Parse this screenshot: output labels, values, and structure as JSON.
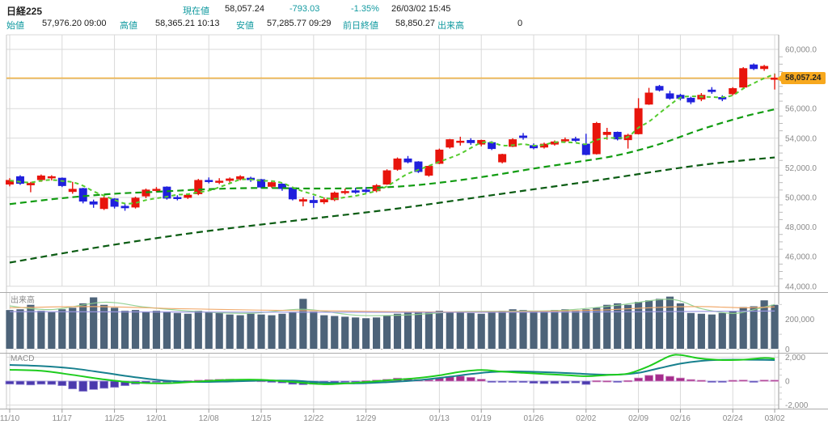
{
  "header": {
    "title": "日経225",
    "current": {
      "label": "現在値",
      "value": "58,057.24",
      "change": "-793.03",
      "change_pct": "-1.35%",
      "datetime": "26/03/02 15:45"
    },
    "open": {
      "label": "始値",
      "value": "57,976.20 09:00"
    },
    "high": {
      "label": "高値",
      "value": "58,365.21 10:13"
    },
    "low": {
      "label": "安値",
      "value": "57,285.77 09:29"
    },
    "prev_close": {
      "label": "前日終値",
      "value": "58,850.27"
    },
    "volume": {
      "label": "出来高",
      "value": "0"
    }
  },
  "panes": {
    "volume_label": "出来高",
    "macd_label": "MACD"
  },
  "chart_data": {
    "type": "candlestick",
    "title": "日経225 daily chart with volume and MACD",
    "current_price": 58057.24,
    "current_price_label": "58,057.24",
    "price_axis": {
      "min": 44000,
      "max": 60000,
      "major_step": 2000,
      "minor_step": 500,
      "label_hidden_at": 58000
    },
    "x_ticks": [
      [
        0,
        "11/10"
      ],
      [
        5,
        "11/17"
      ],
      [
        10,
        "11/25"
      ],
      [
        14,
        "12/01"
      ],
      [
        19,
        "12/08"
      ],
      [
        24,
        "12/15"
      ],
      [
        29,
        "12/22"
      ],
      [
        34,
        "12/29"
      ],
      [
        41,
        "01/13"
      ],
      [
        45,
        "01/19"
      ],
      [
        50,
        "01/26"
      ],
      [
        55,
        "02/02"
      ],
      [
        60,
        "02/09"
      ],
      [
        64,
        "02/16"
      ],
      [
        69,
        "02/24"
      ],
      [
        73,
        "03/02"
      ]
    ],
    "candles_columns": [
      "date",
      "open",
      "high",
      "low",
      "close",
      "volume",
      "macd_hist"
    ],
    "candles": [
      [
        "11/10",
        50900,
        51300,
        50750,
        51150,
        265000,
        -250
      ],
      [
        "11/11",
        51400,
        51500,
        50850,
        50950,
        270000,
        -280
      ],
      [
        "11/12",
        50850,
        51050,
        50350,
        50950,
        300000,
        -320
      ],
      [
        "11/13",
        51200,
        51550,
        51050,
        51450,
        260000,
        -260
      ],
      [
        "11/14",
        51350,
        51500,
        51150,
        51400,
        250000,
        -280
      ],
      [
        "11/17",
        51300,
        51350,
        50700,
        50800,
        270000,
        -380
      ],
      [
        "11/18",
        50400,
        51050,
        50250,
        50550,
        280000,
        -650
      ],
      [
        "11/19",
        50600,
        50650,
        49600,
        49750,
        310000,
        -850
      ],
      [
        "11/20",
        49700,
        49850,
        49300,
        49550,
        350000,
        -700
      ],
      [
        "11/21",
        49250,
        50050,
        49150,
        49950,
        300000,
        -600
      ],
      [
        "11/25",
        49900,
        49950,
        49250,
        49400,
        280000,
        -520
      ],
      [
        "11/26",
        49400,
        49550,
        49100,
        49300,
        260000,
        -380
      ],
      [
        "11/27",
        49350,
        50050,
        49250,
        49950,
        265000,
        -250
      ],
      [
        "11/28",
        50100,
        50600,
        49950,
        50500,
        255000,
        -150
      ],
      [
        "12/01",
        50500,
        50700,
        50350,
        50550,
        260000,
        -80
      ],
      [
        "12/02",
        50700,
        50750,
        49850,
        49950,
        255000,
        -60
      ],
      [
        "12/03",
        50000,
        50150,
        49800,
        49950,
        245000,
        -50
      ],
      [
        "12/04",
        50000,
        50250,
        49900,
        50150,
        240000,
        40
      ],
      [
        "12/05",
        50250,
        51250,
        50150,
        51150,
        260000,
        80
      ],
      [
        "12/08",
        51150,
        51350,
        50950,
        51100,
        250000,
        120
      ],
      [
        "12/09",
        51050,
        51300,
        50900,
        51100,
        245000,
        150
      ],
      [
        "12/10",
        51150,
        51350,
        51000,
        51250,
        235000,
        160
      ],
      [
        "12/11",
        51250,
        51500,
        51150,
        51400,
        230000,
        120
      ],
      [
        "12/12",
        51300,
        51400,
        51050,
        51200,
        240000,
        80
      ],
      [
        "12/15",
        51200,
        51250,
        50600,
        50700,
        235000,
        50
      ],
      [
        "12/16",
        50750,
        51100,
        50650,
        51000,
        230000,
        -80
      ],
      [
        "12/17",
        50900,
        50950,
        50450,
        50600,
        240000,
        -150
      ],
      [
        "12/18",
        50650,
        50700,
        49800,
        49900,
        250000,
        -260
      ],
      [
        "12/19",
        49750,
        50000,
        49400,
        49850,
        340000,
        -300
      ],
      [
        "12/22",
        49800,
        50100,
        49300,
        49650,
        255000,
        -260
      ],
      [
        "12/23",
        49700,
        50000,
        49550,
        49850,
        230000,
        -200
      ],
      [
        "12/24",
        49850,
        50400,
        49750,
        50300,
        225000,
        -130
      ],
      [
        "12/25",
        50350,
        50600,
        50200,
        50400,
        220000,
        -70
      ],
      [
        "12/26",
        50450,
        50650,
        50250,
        50350,
        215000,
        -30
      ],
      [
        "12/29",
        50500,
        50700,
        50300,
        50400,
        210000,
        40
      ],
      [
        "12/30",
        50450,
        50900,
        50350,
        50800,
        215000,
        90
      ],
      [
        "01/05",
        50900,
        51900,
        50850,
        51800,
        225000,
        150
      ],
      [
        "01/06",
        51900,
        52700,
        51800,
        52600,
        240000,
        250
      ],
      [
        "01/07",
        52600,
        52800,
        52300,
        52400,
        250000,
        220
      ],
      [
        "01/08",
        52400,
        52450,
        51650,
        51750,
        255000,
        130
      ],
      [
        "01/09",
        51500,
        52150,
        51400,
        52100,
        250000,
        110
      ],
      [
        "01/13",
        52300,
        53300,
        52250,
        53200,
        260000,
        260
      ],
      [
        "01/14",
        53400,
        53950,
        53300,
        53900,
        255000,
        360
      ],
      [
        "01/15",
        53750,
        54100,
        53500,
        53800,
        250000,
        420
      ],
      [
        "01/16",
        53850,
        54000,
        53550,
        53700,
        245000,
        310
      ],
      [
        "01/19",
        53600,
        53900,
        53450,
        53850,
        240000,
        160
      ],
      [
        "01/20",
        53700,
        53800,
        53200,
        53300,
        250000,
        -90
      ],
      [
        "01/21",
        52400,
        52950,
        52300,
        52900,
        260000,
        -100
      ],
      [
        "01/22",
        53450,
        54000,
        53400,
        53900,
        270000,
        -90
      ],
      [
        "01/23",
        54150,
        54350,
        53900,
        54050,
        265000,
        -110
      ],
      [
        "01/26",
        53500,
        53650,
        53250,
        53350,
        260000,
        -180
      ],
      [
        "01/27",
        53400,
        53700,
        53300,
        53600,
        255000,
        -210
      ],
      [
        "01/28",
        53600,
        53850,
        53500,
        53750,
        265000,
        -200
      ],
      [
        "01/29",
        53820,
        54050,
        53700,
        53900,
        270000,
        -170
      ],
      [
        "01/30",
        53950,
        54100,
        53750,
        53850,
        260000,
        -150
      ],
      [
        "02/02",
        53600,
        54300,
        52850,
        52900,
        270000,
        -280
      ],
      [
        "02/03",
        52950,
        55100,
        52900,
        55000,
        280000,
        40
      ],
      [
        "02/04",
        54250,
        54700,
        53900,
        54400,
        300000,
        30
      ],
      [
        "02/05",
        54400,
        54450,
        53850,
        53950,
        310000,
        -40
      ],
      [
        "02/06",
        53900,
        54300,
        53300,
        54200,
        300000,
        50
      ],
      [
        "02/09",
        54300,
        56700,
        54250,
        56000,
        320000,
        260
      ],
      [
        "02/10",
        56300,
        57400,
        56250,
        57050,
        330000,
        480
      ],
      [
        "02/12",
        57500,
        57600,
        57150,
        57250,
        340000,
        560
      ],
      [
        "02/13",
        57000,
        57200,
        56600,
        56700,
        355000,
        400
      ],
      [
        "02/16",
        56900,
        57000,
        56550,
        56700,
        310000,
        260
      ],
      [
        "02/17",
        56700,
        56800,
        56300,
        56450,
        245000,
        130
      ],
      [
        "02/18",
        56650,
        57050,
        56500,
        56900,
        240000,
        70
      ],
      [
        "02/19",
        57250,
        57450,
        57000,
        57150,
        235000,
        -60
      ],
      [
        "02/20",
        56750,
        56900,
        56500,
        56650,
        245000,
        -70
      ],
      [
        "02/24",
        57000,
        57450,
        56900,
        57350,
        260000,
        70
      ],
      [
        "02/25",
        57450,
        58800,
        57400,
        58700,
        285000,
        90
      ],
      [
        "02/26",
        58950,
        59050,
        58600,
        58700,
        290000,
        -60
      ],
      [
        "02/27",
        58700,
        58950,
        58550,
        58850,
        330000,
        90
      ],
      [
        "03/02",
        57976.2,
        58365.21,
        57285.77,
        58057.24,
        300000,
        80
      ]
    ],
    "ma_lines": {
      "ma5": {
        "color": "#55cb2e",
        "source": "sma5_of_close"
      },
      "ma25": {
        "color": "#119c11",
        "points": [
          [
            0,
            49550
          ],
          [
            5,
            49950
          ],
          [
            10,
            50250
          ],
          [
            14,
            50380
          ],
          [
            19,
            50560
          ],
          [
            24,
            50640
          ],
          [
            29,
            50600
          ],
          [
            34,
            50640
          ],
          [
            38,
            50780
          ],
          [
            42,
            51080
          ],
          [
            46,
            51480
          ],
          [
            50,
            51950
          ],
          [
            54,
            52380
          ],
          [
            58,
            52850
          ],
          [
            62,
            53600
          ],
          [
            66,
            54600
          ],
          [
            70,
            55450
          ],
          [
            73,
            55950
          ]
        ]
      },
      "ma75": {
        "color": "#0b5c13",
        "points": [
          [
            0,
            45600
          ],
          [
            9,
            46700
          ],
          [
            18,
            47650
          ],
          [
            28,
            48500
          ],
          [
            37,
            49250
          ],
          [
            47,
            50250
          ],
          [
            56,
            51150
          ],
          [
            65,
            52100
          ],
          [
            70,
            52500
          ],
          [
            73,
            52700
          ]
        ]
      }
    },
    "volume_axis": {
      "ticks": [
        0,
        200000
      ],
      "minor_ticks": [
        100000,
        300000
      ]
    },
    "volume_ma_lines": [
      {
        "name": "short",
        "color": "#8fd08f",
        "points": [
          [
            0,
            290000
          ],
          [
            4,
            266000
          ],
          [
            9,
            315000
          ],
          [
            13,
            282000
          ],
          [
            18,
            252000
          ],
          [
            23,
            241000
          ],
          [
            28,
            268000
          ],
          [
            33,
            228000
          ],
          [
            38,
            230000
          ],
          [
            43,
            252000
          ],
          [
            48,
            255000
          ],
          [
            53,
            262000
          ],
          [
            58,
            295000
          ],
          [
            63,
            335000
          ],
          [
            66,
            272000
          ],
          [
            69,
            240000
          ],
          [
            71,
            265000
          ],
          [
            73,
            300000
          ]
        ]
      },
      {
        "name": "mid",
        "color": "#f0a868",
        "points": [
          [
            0,
            278000
          ],
          [
            8,
            286000
          ],
          [
            16,
            272000
          ],
          [
            24,
            262000
          ],
          [
            32,
            256000
          ],
          [
            40,
            250000
          ],
          [
            48,
            252000
          ],
          [
            56,
            262000
          ],
          [
            62,
            281000
          ],
          [
            66,
            286000
          ],
          [
            70,
            278000
          ],
          [
            73,
            284000
          ]
        ]
      },
      {
        "name": "long",
        "color": "#9b97e2",
        "points": [
          [
            0,
            252000
          ],
          [
            20,
            249000
          ],
          [
            40,
            247000
          ],
          [
            60,
            251000
          ],
          [
            73,
            256000
          ]
        ]
      }
    ],
    "macd": {
      "axis_ticks": [
        2000,
        0,
        -2000
      ],
      "minor_ticks": [
        1500,
        1000,
        500,
        -500,
        -1000,
        -1500
      ],
      "line_color": "#1ecc1e",
      "signal_color": "#17808e",
      "hist_pos_color": "#a52c8c",
      "hist_neg_color": "#4b39ad",
      "line_points": [
        [
          0,
          950
        ],
        [
          3,
          860
        ],
        [
          6,
          520
        ],
        [
          9,
          140
        ],
        [
          12,
          -130
        ],
        [
          15,
          -180
        ],
        [
          18,
          -30
        ],
        [
          21,
          100
        ],
        [
          24,
          110
        ],
        [
          27,
          -70
        ],
        [
          30,
          -260
        ],
        [
          33,
          -140
        ],
        [
          36,
          60
        ],
        [
          39,
          260
        ],
        [
          41,
          480
        ],
        [
          43,
          780
        ],
        [
          45,
          930
        ],
        [
          47,
          790
        ],
        [
          49,
          690
        ],
        [
          51,
          590
        ],
        [
          53,
          510
        ],
        [
          55,
          410
        ],
        [
          57,
          510
        ],
        [
          59,
          630
        ],
        [
          61,
          1250
        ],
        [
          63,
          2100
        ],
        [
          64,
          2180
        ],
        [
          65,
          2030
        ],
        [
          66,
          1880
        ],
        [
          68,
          1760
        ],
        [
          70,
          1790
        ],
        [
          72,
          1930
        ],
        [
          73,
          1870
        ]
      ],
      "signal_points": [
        [
          0,
          1350
        ],
        [
          3,
          1260
        ],
        [
          6,
          1060
        ],
        [
          9,
          700
        ],
        [
          12,
          320
        ],
        [
          15,
          30
        ],
        [
          18,
          -70
        ],
        [
          21,
          -30
        ],
        [
          24,
          40
        ],
        [
          27,
          40
        ],
        [
          30,
          -120
        ],
        [
          33,
          -190
        ],
        [
          36,
          -90
        ],
        [
          39,
          80
        ],
        [
          42,
          370
        ],
        [
          44,
          590
        ],
        [
          46,
          760
        ],
        [
          48,
          810
        ],
        [
          50,
          780
        ],
        [
          52,
          720
        ],
        [
          54,
          640
        ],
        [
          56,
          560
        ],
        [
          58,
          540
        ],
        [
          60,
          690
        ],
        [
          62,
          1080
        ],
        [
          64,
          1460
        ],
        [
          66,
          1690
        ],
        [
          68,
          1780
        ],
        [
          70,
          1790
        ],
        [
          72,
          1770
        ],
        [
          73,
          1760
        ]
      ]
    },
    "colors": {
      "up": "#e8150c",
      "down": "#2020dd",
      "volume_bar": "#4d6379",
      "current_line": "#f2b13f",
      "tag_bg": "#f7a81e",
      "grid": "#d9d9d9",
      "frame": "#ababab",
      "axis_text": "#8a8a8a",
      "macd_zero": "#b9b2dd"
    }
  }
}
